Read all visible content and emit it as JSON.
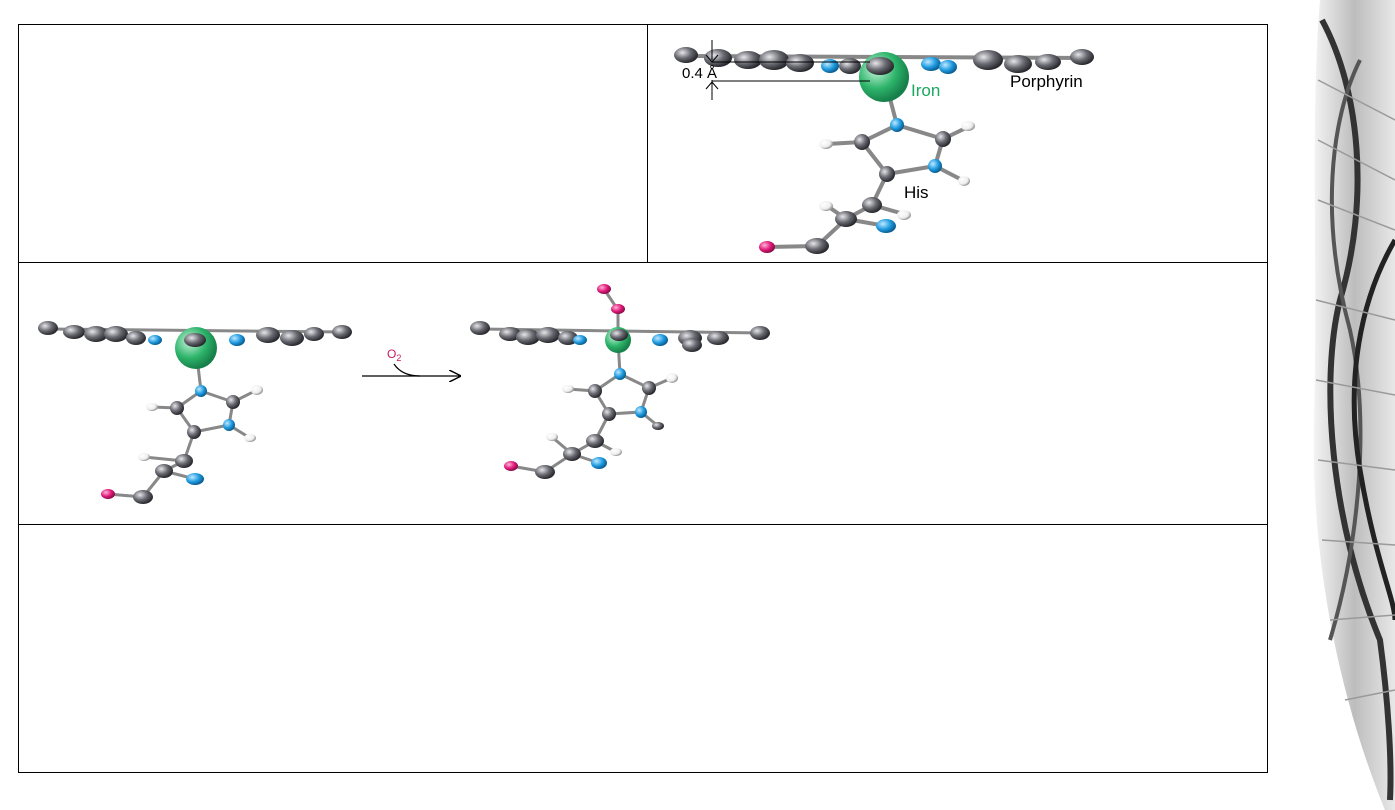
{
  "slide": {
    "figure_top": {
      "distance_label": "0.4 Å",
      "iron_label": "Iron",
      "porphyrin_label": "Porphyrin",
      "his_label": "His"
    },
    "figure_middle": {
      "reagent_label": "O",
      "reagent_subscript": "2"
    }
  },
  "colors": {
    "iron": "#2db46a",
    "nitrogen": "#1e9be0",
    "oxygen": "#e0197a",
    "carbon": "#55555c",
    "hydrogen": "#f2f2f2",
    "iron_label": "#1aa861",
    "reagent_label": "#c8175f"
  }
}
